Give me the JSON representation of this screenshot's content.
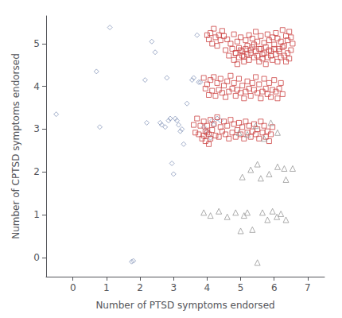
{
  "chart_data": {
    "type": "scatter",
    "xlabel": "Number of PTSD symptoms endorsed",
    "ylabel": "Number of CPTSD symptoms endorsed",
    "xlim": [
      -0.8,
      7.5
    ],
    "ylim": [
      -0.45,
      5.65
    ],
    "xticks": [
      0,
      1,
      2,
      3,
      4,
      5,
      6,
      7
    ],
    "yticks": [
      0,
      1,
      2,
      3,
      4,
      5
    ],
    "grid": false,
    "series": [
      {
        "color": "#8899BB",
        "marker": "diamond",
        "x": [
          -0.5,
          0.7,
          0.8,
          1.1,
          1.75,
          1.8,
          2.15,
          2.2,
          2.35,
          2.45,
          2.6,
          2.65,
          2.75,
          2.8,
          2.85,
          2.9,
          2.95,
          3.0,
          3.05,
          3.1,
          3.15,
          3.2,
          3.25,
          3.3,
          3.4,
          3.55,
          3.6,
          3.7,
          3.75,
          3.8,
          3.9,
          4.0,
          4.1,
          4.15,
          4.2,
          4.3,
          4.4
        ],
        "values": [
          3.35,
          4.35,
          3.05,
          5.38,
          -0.1,
          -0.08,
          4.15,
          3.15,
          5.05,
          4.8,
          3.15,
          3.1,
          3.05,
          4.2,
          3.2,
          3.25,
          2.2,
          1.95,
          3.25,
          3.2,
          3.1,
          2.95,
          3.0,
          2.65,
          3.6,
          4.15,
          4.2,
          5.2,
          4.1,
          4.1,
          3.05,
          2.95,
          2.8,
          3.2,
          3.1,
          3.25,
          3.2
        ]
      },
      {
        "color": "#CC4444",
        "marker": "square",
        "points": [
          [
            4.0,
            5.2
          ],
          [
            4.05,
            5.1
          ],
          [
            4.1,
            5.25
          ],
          [
            4.15,
            5.0
          ],
          [
            4.2,
            5.35
          ],
          [
            4.25,
            5.15
          ],
          [
            4.3,
            4.95
          ],
          [
            4.35,
            5.2
          ],
          [
            4.4,
            5.08
          ],
          [
            4.45,
            5.3
          ],
          [
            4.5,
            5.18
          ],
          [
            4.55,
            4.85
          ],
          [
            4.6,
            5.1
          ],
          [
            4.65,
            4.72
          ],
          [
            4.7,
            5.0
          ],
          [
            4.75,
            4.88
          ],
          [
            4.8,
            5.22
          ],
          [
            4.85,
            4.78
          ],
          [
            4.9,
            5.05
          ],
          [
            4.95,
            4.9
          ],
          [
            5.0,
            5.15
          ],
          [
            5.05,
            4.82
          ],
          [
            5.1,
            4.7
          ],
          [
            5.15,
            5.08
          ],
          [
            5.2,
            4.95
          ],
          [
            5.25,
            5.2
          ],
          [
            5.3,
            4.85
          ],
          [
            5.35,
            5.12
          ],
          [
            5.4,
            4.98
          ],
          [
            5.45,
            5.28
          ],
          [
            5.5,
            5.05
          ],
          [
            5.55,
            4.88
          ],
          [
            5.6,
            5.18
          ],
          [
            5.65,
            4.75
          ],
          [
            5.7,
            5.02
          ],
          [
            5.75,
            4.92
          ],
          [
            5.8,
            5.22
          ],
          [
            5.85,
            5.08
          ],
          [
            5.9,
            4.82
          ],
          [
            5.95,
            5.15
          ],
          [
            6.0,
            4.98
          ],
          [
            6.05,
            5.25
          ],
          [
            6.1,
            5.12
          ],
          [
            6.15,
            4.88
          ],
          [
            6.2,
            5.05
          ],
          [
            6.25,
            5.32
          ],
          [
            6.3,
            4.95
          ],
          [
            6.35,
            5.18
          ],
          [
            6.4,
            5.08
          ],
          [
            6.45,
            5.28
          ],
          [
            6.5,
            5.15
          ],
          [
            6.55,
            5.0
          ],
          [
            4.8,
            4.62
          ],
          [
            4.85,
            4.78
          ],
          [
            4.9,
            4.52
          ],
          [
            4.95,
            4.68
          ],
          [
            5.0,
            4.85
          ],
          [
            5.05,
            4.72
          ],
          [
            5.1,
            4.58
          ],
          [
            5.15,
            4.88
          ],
          [
            5.2,
            4.75
          ],
          [
            5.25,
            4.62
          ],
          [
            5.3,
            4.78
          ],
          [
            5.35,
            4.92
          ],
          [
            5.4,
            4.68
          ],
          [
            5.45,
            4.82
          ],
          [
            5.5,
            4.72
          ],
          [
            5.55,
            4.58
          ],
          [
            5.6,
            4.88
          ],
          [
            5.65,
            4.65
          ],
          [
            5.7,
            4.78
          ],
          [
            5.75,
            4.52
          ],
          [
            5.8,
            4.68
          ],
          [
            5.85,
            4.85
          ],
          [
            5.9,
            4.72
          ],
          [
            5.95,
            4.62
          ],
          [
            6.0,
            4.88
          ],
          [
            6.05,
            4.75
          ],
          [
            6.1,
            4.58
          ],
          [
            6.15,
            4.82
          ],
          [
            6.2,
            4.68
          ],
          [
            6.25,
            4.92
          ],
          [
            6.3,
            4.72
          ],
          [
            6.35,
            4.58
          ],
          [
            6.4,
            4.78
          ],
          [
            6.45,
            4.65
          ],
          [
            6.5,
            4.85
          ],
          [
            3.9,
            4.2
          ],
          [
            3.95,
            3.95
          ],
          [
            4.0,
            4.05
          ],
          [
            4.05,
            3.8
          ],
          [
            4.1,
            4.15
          ],
          [
            4.15,
            3.9
          ],
          [
            4.2,
            4.22
          ],
          [
            4.25,
            3.78
          ],
          [
            4.3,
            4.08
          ],
          [
            4.35,
            3.92
          ],
          [
            4.4,
            4.18
          ],
          [
            4.45,
            3.85
          ],
          [
            4.5,
            4.02
          ],
          [
            4.55,
            3.75
          ],
          [
            4.6,
            4.12
          ],
          [
            4.65,
            3.88
          ],
          [
            4.7,
            4.25
          ],
          [
            4.75,
            3.95
          ],
          [
            4.8,
            4.08
          ],
          [
            4.85,
            3.78
          ],
          [
            4.9,
            3.92
          ],
          [
            4.95,
            4.18
          ],
          [
            5.0,
            3.85
          ],
          [
            5.05,
            4.02
          ],
          [
            5.1,
            3.72
          ],
          [
            5.15,
            3.88
          ],
          [
            5.2,
            4.12
          ],
          [
            5.25,
            3.95
          ],
          [
            5.3,
            3.78
          ],
          [
            5.35,
            4.08
          ],
          [
            5.4,
            3.92
          ],
          [
            5.45,
            4.22
          ],
          [
            5.5,
            3.85
          ],
          [
            5.55,
            4.05
          ],
          [
            5.6,
            3.72
          ],
          [
            5.65,
            3.88
          ],
          [
            5.7,
            4.18
          ],
          [
            5.75,
            3.95
          ],
          [
            5.8,
            3.82
          ],
          [
            5.85,
            4.08
          ],
          [
            5.9,
            3.75
          ],
          [
            5.95,
            3.92
          ],
          [
            6.0,
            4.15
          ],
          [
            6.05,
            3.88
          ],
          [
            6.1,
            3.72
          ],
          [
            6.15,
            3.95
          ],
          [
            6.2,
            4.08
          ],
          [
            6.25,
            3.82
          ],
          [
            3.6,
            3.1
          ],
          [
            3.65,
            2.92
          ],
          [
            3.7,
            3.25
          ],
          [
            3.75,
            2.88
          ],
          [
            3.8,
            3.08
          ],
          [
            3.85,
            2.78
          ],
          [
            3.9,
            3.18
          ],
          [
            3.95,
            2.95
          ],
          [
            4.0,
            3.08
          ],
          [
            4.05,
            2.88
          ],
          [
            4.1,
            3.22
          ],
          [
            4.15,
            2.98
          ],
          [
            4.2,
            3.12
          ],
          [
            4.25,
            2.85
          ],
          [
            4.3,
            3.28
          ],
          [
            4.35,
            2.82
          ],
          [
            4.4,
            3.05
          ],
          [
            4.45,
            2.95
          ],
          [
            4.5,
            3.18
          ],
          [
            4.55,
            2.88
          ],
          [
            4.6,
            3.08
          ],
          [
            4.65,
            2.78
          ],
          [
            4.7,
            3.22
          ],
          [
            4.75,
            2.92
          ],
          [
            4.8,
            3.12
          ],
          [
            4.85,
            2.82
          ],
          [
            4.9,
            2.98
          ],
          [
            4.95,
            3.15
          ],
          [
            5.0,
            2.88
          ],
          [
            5.05,
            3.05
          ],
          [
            5.1,
            2.78
          ],
          [
            5.15,
            3.18
          ],
          [
            5.2,
            2.92
          ],
          [
            5.25,
            3.08
          ],
          [
            5.3,
            2.82
          ],
          [
            5.35,
            2.95
          ],
          [
            5.4,
            3.12
          ],
          [
            5.45,
            2.88
          ],
          [
            5.5,
            3.0
          ],
          [
            5.55,
            2.78
          ],
          [
            5.6,
            3.18
          ],
          [
            5.65,
            2.92
          ],
          [
            5.7,
            3.08
          ],
          [
            5.75,
            2.82
          ],
          [
            5.8,
            2.95
          ],
          [
            5.85,
            2.72
          ],
          [
            5.9,
            2.88
          ],
          [
            5.95,
            3.05
          ],
          [
            3.9,
            2.85
          ],
          [
            3.95,
            2.72
          ],
          [
            4.0,
            2.92
          ],
          [
            4.05,
            2.65
          ],
          [
            4.1,
            2.78
          ]
        ]
      },
      {
        "color": "#999999",
        "marker": "triangle",
        "points": [
          [
            3.9,
            1.05
          ],
          [
            4.1,
            0.98
          ],
          [
            4.35,
            1.08
          ],
          [
            4.6,
            0.95
          ],
          [
            4.85,
            1.05
          ],
          [
            5.0,
            0.62
          ],
          [
            5.1,
            0.98
          ],
          [
            5.2,
            1.05
          ],
          [
            5.35,
            0.65
          ],
          [
            5.5,
            -0.12
          ],
          [
            5.65,
            1.05
          ],
          [
            5.8,
            0.88
          ],
          [
            5.95,
            1.08
          ],
          [
            6.08,
            0.95
          ],
          [
            6.2,
            1.02
          ],
          [
            6.35,
            0.88
          ],
          [
            5.05,
            1.88
          ],
          [
            5.3,
            2.05
          ],
          [
            5.6,
            1.85
          ],
          [
            5.85,
            1.95
          ],
          [
            6.1,
            2.12
          ],
          [
            6.35,
            1.82
          ],
          [
            6.55,
            2.08
          ],
          [
            4.95,
            2.92
          ],
          [
            5.2,
            2.88
          ],
          [
            5.45,
            3.08
          ],
          [
            5.7,
            2.78
          ],
          [
            5.9,
            3.15
          ],
          [
            6.1,
            2.92
          ],
          [
            5.5,
            2.18
          ],
          [
            6.3,
            2.08
          ]
        ]
      }
    ]
  }
}
